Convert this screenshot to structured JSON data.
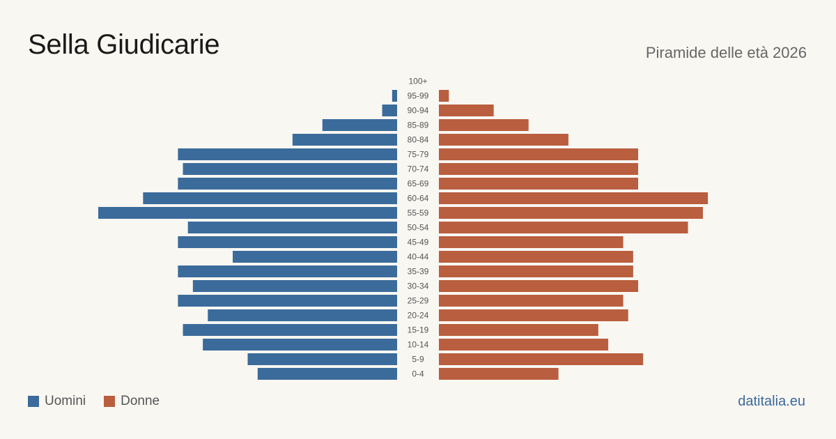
{
  "header": {
    "title": "Sella Giudicarie",
    "subtitle": "Piramide delle età 2026"
  },
  "legend": {
    "men_label": "Uomini",
    "women_label": "Donne"
  },
  "brand": "datitalia.eu",
  "colors": {
    "men": "#3b6b9b",
    "women": "#b95e3e",
    "background": "#f9f7f2",
    "age_label": "#555555"
  },
  "chart_data": {
    "type": "bar",
    "orientation": "horizontal-pyramid",
    "categories": [
      "100+",
      "95-99",
      "90-94",
      "85-89",
      "80-84",
      "75-79",
      "70-74",
      "65-69",
      "60-64",
      "55-59",
      "50-54",
      "45-49",
      "40-44",
      "35-39",
      "30-34",
      "25-29",
      "20-24",
      "15-19",
      "10-14",
      "5-9",
      "0-4"
    ],
    "series": [
      {
        "name": "Uomini",
        "values": [
          0,
          1,
          3,
          15,
          21,
          44,
          43,
          44,
          51,
          60,
          42,
          44,
          33,
          44,
          41,
          44,
          38,
          43,
          39,
          30,
          28
        ]
      },
      {
        "name": "Donne",
        "values": [
          0,
          2,
          11,
          18,
          26,
          40,
          40,
          40,
          54,
          53,
          50,
          37,
          39,
          39,
          40,
          37,
          38,
          32,
          34,
          41,
          24
        ]
      }
    ],
    "legend_position": "bottom-left",
    "grid": false
  }
}
